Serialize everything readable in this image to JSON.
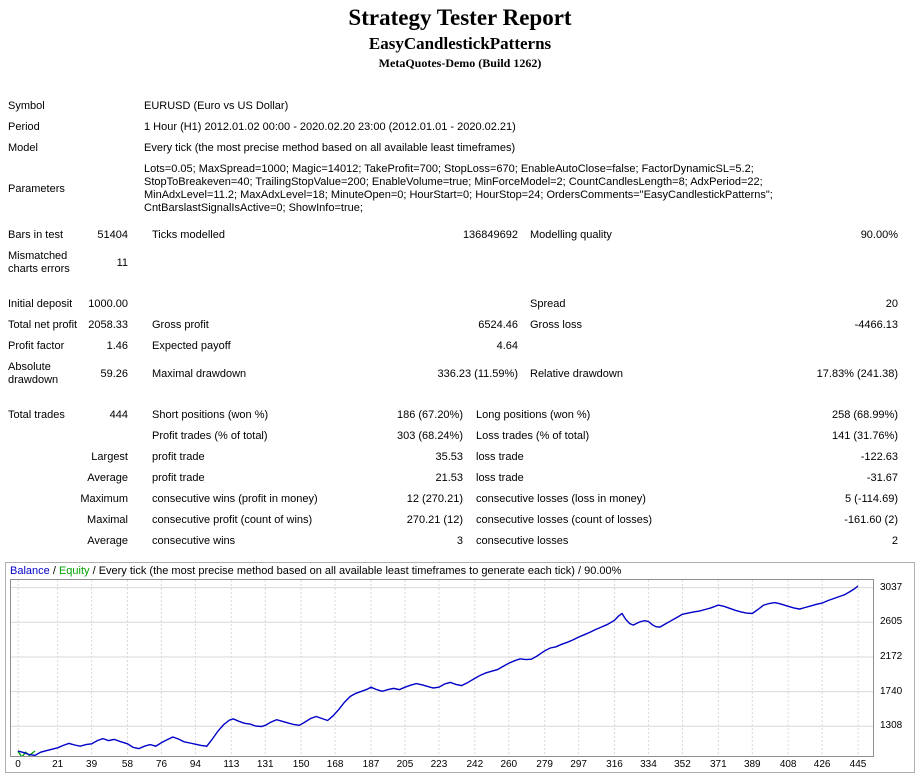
{
  "header": {
    "title": "Strategy Tester Report",
    "subtitle": "EasyCandlestickPatterns",
    "server": "MetaQuotes-Demo (Build 1262)"
  },
  "info": {
    "rows": [
      {
        "label": "Symbol",
        "value": "EURUSD (Euro vs US Dollar)"
      },
      {
        "label": "Period",
        "value": "1 Hour (H1) 2012.01.02 00:00 - 2020.02.20 23:00 (2012.01.01 - 2020.02.21)"
      },
      {
        "label": "Model",
        "value": "Every tick (the most precise method based on all available least timeframes)"
      },
      {
        "label": "Parameters",
        "value": "Lots=0.05; MaxSpread=1000; Magic=14012; TakeProfit=700; StopLoss=670; EnableAutoClose=false; FactorDynamicSL=5.2; StopToBreakeven=40; TrailingStopValue=200; EnableVolume=true; MinForceModel=2; CountCandlesLength=8; AdxPeriod=22; MinAdxLevel=11.2; MaxAdxLevel=18; MinuteOpen=0; HourStart=0; HourStop=24; OrdersComments=\"EasyCandlestickPatterns\"; CntBarslastSignalIsActive=0; ShowInfo=true;"
      }
    ]
  },
  "stats": {
    "upper": [
      {
        "c": [
          "Bars in test",
          "51404",
          "Ticks modelled",
          "136849692",
          "Modelling quality",
          "90.00%"
        ]
      },
      {
        "c": [
          "Mismatched charts errors",
          "11",
          "",
          "",
          "",
          ""
        ]
      },
      {
        "gap": true,
        "c": [
          "Initial deposit",
          "1000.00",
          "",
          "",
          "Spread",
          "20"
        ]
      },
      {
        "c": [
          "Total net profit",
          "2058.33",
          "Gross profit",
          "6524.46",
          "Gross loss",
          "-4466.13"
        ]
      },
      {
        "c": [
          "Profit factor",
          "1.46",
          "Expected payoff",
          "4.64",
          "",
          ""
        ]
      },
      {
        "c": [
          "Absolute drawdown",
          "59.26",
          "Maximal drawdown",
          "336.23 (11.59%)",
          "Relative drawdown",
          "17.83% (241.38)"
        ]
      }
    ],
    "trades": [
      {
        "gap": true,
        "c": [
          "Total trades",
          "444",
          "Short positions (won %)",
          "186 (67.20%)",
          "Long positions (won %)",
          "258 (68.99%)"
        ]
      },
      {
        "c": [
          "",
          "",
          "Profit trades (% of total)",
          "303 (68.24%)",
          "Loss trades (% of total)",
          "141 (31.76%)"
        ]
      },
      {
        "l1r": true,
        "c": [
          "Largest",
          "",
          "profit trade",
          "35.53",
          "loss trade",
          "-122.63"
        ]
      },
      {
        "l1r": true,
        "c": [
          "Average",
          "",
          "profit trade",
          "21.53",
          "loss trade",
          "-31.67"
        ]
      },
      {
        "l1r": true,
        "c": [
          "Maximum",
          "",
          "consecutive wins (profit in money)",
          "12 (270.21)",
          "consecutive losses (loss in money)",
          "5 (-114.69)"
        ]
      },
      {
        "l1r": true,
        "c": [
          "Maximal",
          "",
          "consecutive profit (count of wins)",
          "270.21 (12)",
          "consecutive losses (count of losses)",
          "-161.60 (2)"
        ]
      },
      {
        "l1r": true,
        "c": [
          "Average",
          "",
          "consecutive wins",
          "3",
          "consecutive losses",
          "2"
        ]
      }
    ]
  },
  "chart_data": {
    "type": "line",
    "header": {
      "balance": "Balance",
      "sep1": " / ",
      "equity": "Equity",
      "sep2": " / ",
      "rest": "Every tick (the most precise method based on all available least timeframes to generate each tick) / 90.00%"
    },
    "colors": {
      "balance": "#0000c8",
      "equity": "#00a000",
      "grid": "#d8d8d8",
      "border": "#909090"
    },
    "xlim": [
      0,
      445
    ],
    "ylim": [
      950,
      3120
    ],
    "x_ticks": [
      0,
      21,
      39,
      58,
      76,
      94,
      113,
      131,
      150,
      168,
      187,
      205,
      223,
      242,
      260,
      279,
      297,
      316,
      334,
      352,
      371,
      389,
      408,
      426,
      445
    ],
    "y_ticks": [
      3037,
      2605,
      2172,
      1740,
      1308
    ],
    "series": [
      {
        "name": "Balance",
        "color": "#0000c8",
        "points": [
          [
            0,
            1000
          ],
          [
            3,
            980
          ],
          [
            6,
            955
          ],
          [
            9,
            945
          ],
          [
            12,
            985
          ],
          [
            16,
            1010
          ],
          [
            21,
            1040
          ],
          [
            24,
            1070
          ],
          [
            27,
            1095
          ],
          [
            30,
            1075
          ],
          [
            33,
            1060
          ],
          [
            36,
            1080
          ],
          [
            39,
            1090
          ],
          [
            42,
            1130
          ],
          [
            45,
            1155
          ],
          [
            48,
            1130
          ],
          [
            51,
            1145
          ],
          [
            54,
            1120
          ],
          [
            58,
            1090
          ],
          [
            61,
            1045
          ],
          [
            64,
            1030
          ],
          [
            67,
            1060
          ],
          [
            70,
            1080
          ],
          [
            73,
            1060
          ],
          [
            76,
            1105
          ],
          [
            79,
            1140
          ],
          [
            82,
            1175
          ],
          [
            85,
            1150
          ],
          [
            88,
            1115
          ],
          [
            91,
            1100
          ],
          [
            94,
            1085
          ],
          [
            97,
            1070
          ],
          [
            100,
            1060
          ],
          [
            103,
            1150
          ],
          [
            106,
            1250
          ],
          [
            109,
            1330
          ],
          [
            112,
            1385
          ],
          [
            114,
            1400
          ],
          [
            117,
            1370
          ],
          [
            120,
            1345
          ],
          [
            123,
            1335
          ],
          [
            126,
            1310
          ],
          [
            129,
            1305
          ],
          [
            131,
            1320
          ],
          [
            134,
            1360
          ],
          [
            137,
            1390
          ],
          [
            140,
            1370
          ],
          [
            143,
            1350
          ],
          [
            146,
            1330
          ],
          [
            149,
            1320
          ],
          [
            152,
            1360
          ],
          [
            155,
            1405
          ],
          [
            158,
            1430
          ],
          [
            161,
            1405
          ],
          [
            164,
            1380
          ],
          [
            167,
            1440
          ],
          [
            170,
            1520
          ],
          [
            173,
            1610
          ],
          [
            176,
            1680
          ],
          [
            179,
            1720
          ],
          [
            182,
            1745
          ],
          [
            185,
            1770
          ],
          [
            187,
            1795
          ],
          [
            190,
            1765
          ],
          [
            193,
            1745
          ],
          [
            196,
            1765
          ],
          [
            199,
            1780
          ],
          [
            202,
            1765
          ],
          [
            205,
            1795
          ],
          [
            208,
            1820
          ],
          [
            211,
            1840
          ],
          [
            214,
            1825
          ],
          [
            217,
            1805
          ],
          [
            220,
            1785
          ],
          [
            223,
            1795
          ],
          [
            226,
            1835
          ],
          [
            229,
            1855
          ],
          [
            232,
            1830
          ],
          [
            235,
            1815
          ],
          [
            238,
            1850
          ],
          [
            242,
            1905
          ],
          [
            245,
            1945
          ],
          [
            248,
            1975
          ],
          [
            251,
            1995
          ],
          [
            254,
            2015
          ],
          [
            257,
            2055
          ],
          [
            260,
            2095
          ],
          [
            263,
            2125
          ],
          [
            266,
            2150
          ],
          [
            269,
            2140
          ],
          [
            272,
            2145
          ],
          [
            275,
            2185
          ],
          [
            279,
            2250
          ],
          [
            282,
            2285
          ],
          [
            285,
            2300
          ],
          [
            288,
            2330
          ],
          [
            291,
            2355
          ],
          [
            294,
            2385
          ],
          [
            297,
            2420
          ],
          [
            300,
            2450
          ],
          [
            303,
            2480
          ],
          [
            306,
            2515
          ],
          [
            309,
            2545
          ],
          [
            312,
            2575
          ],
          [
            316,
            2630
          ],
          [
            318,
            2680
          ],
          [
            320,
            2715
          ],
          [
            322,
            2640
          ],
          [
            324,
            2590
          ],
          [
            326,
            2570
          ],
          [
            328,
            2595
          ],
          [
            330,
            2615
          ],
          [
            332,
            2625
          ],
          [
            334,
            2615
          ],
          [
            336,
            2575
          ],
          [
            338,
            2550
          ],
          [
            340,
            2545
          ],
          [
            343,
            2585
          ],
          [
            346,
            2625
          ],
          [
            349,
            2665
          ],
          [
            352,
            2705
          ],
          [
            355,
            2720
          ],
          [
            358,
            2735
          ],
          [
            361,
            2745
          ],
          [
            364,
            2765
          ],
          [
            367,
            2785
          ],
          [
            371,
            2820
          ],
          [
            374,
            2805
          ],
          [
            377,
            2780
          ],
          [
            380,
            2755
          ],
          [
            383,
            2735
          ],
          [
            386,
            2720
          ],
          [
            389,
            2715
          ],
          [
            392,
            2765
          ],
          [
            395,
            2820
          ],
          [
            398,
            2840
          ],
          [
            401,
            2850
          ],
          [
            404,
            2835
          ],
          [
            408,
            2805
          ],
          [
            411,
            2785
          ],
          [
            414,
            2770
          ],
          [
            417,
            2790
          ],
          [
            420,
            2810
          ],
          [
            423,
            2830
          ],
          [
            426,
            2845
          ],
          [
            429,
            2875
          ],
          [
            432,
            2900
          ],
          [
            435,
            2925
          ],
          [
            438,
            2950
          ],
          [
            441,
            2990
          ],
          [
            443,
            3020
          ],
          [
            445,
            3058
          ]
        ]
      },
      {
        "name": "Equity",
        "color": "#00a000",
        "points": [
          [
            0,
            1000
          ],
          [
            2,
            925
          ],
          [
            4,
            985
          ],
          [
            6,
            945
          ],
          [
            9,
            1000
          ]
        ]
      }
    ]
  }
}
